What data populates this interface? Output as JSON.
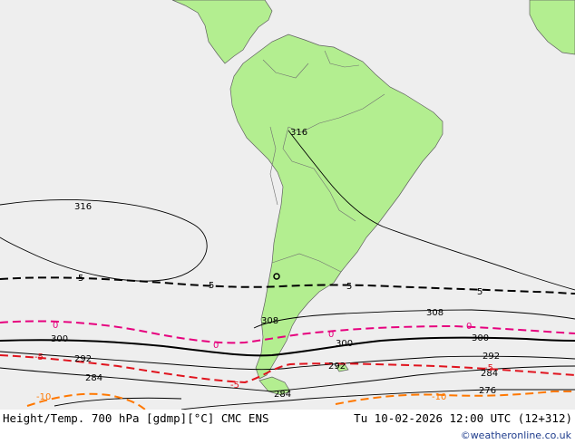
{
  "footer": {
    "title": "Height/Temp. 700 hPa [gdmp][°C] CMC ENS",
    "datetime": "Tu 10-02-2026 12:00 UTC (12+312)",
    "credit": "©weatheronline.co.uk"
  },
  "colors": {
    "ocean": "#eeeeee",
    "land": "#b3ee90",
    "height_contour": "#000000",
    "temp_minus5": "#000000",
    "temp_0": "#e6007e",
    "temp_5": "#e0141e",
    "temp_10": "#ff7800"
  },
  "contour_labels": {
    "height": [
      "316",
      "316",
      "308",
      "308",
      "300",
      "300",
      "300",
      "292",
      "292",
      "292",
      "284",
      "284",
      "284",
      "276"
    ],
    "temp_minus5_isotherm": [
      "5",
      "5",
      "5",
      "5"
    ],
    "temp_0_isotherm": [
      "0",
      "0",
      "0",
      "0"
    ],
    "temp_5_isotherm": [
      "-5",
      "-5",
      "-5"
    ],
    "temp_10_isotherm": [
      "-10",
      "-10"
    ]
  }
}
